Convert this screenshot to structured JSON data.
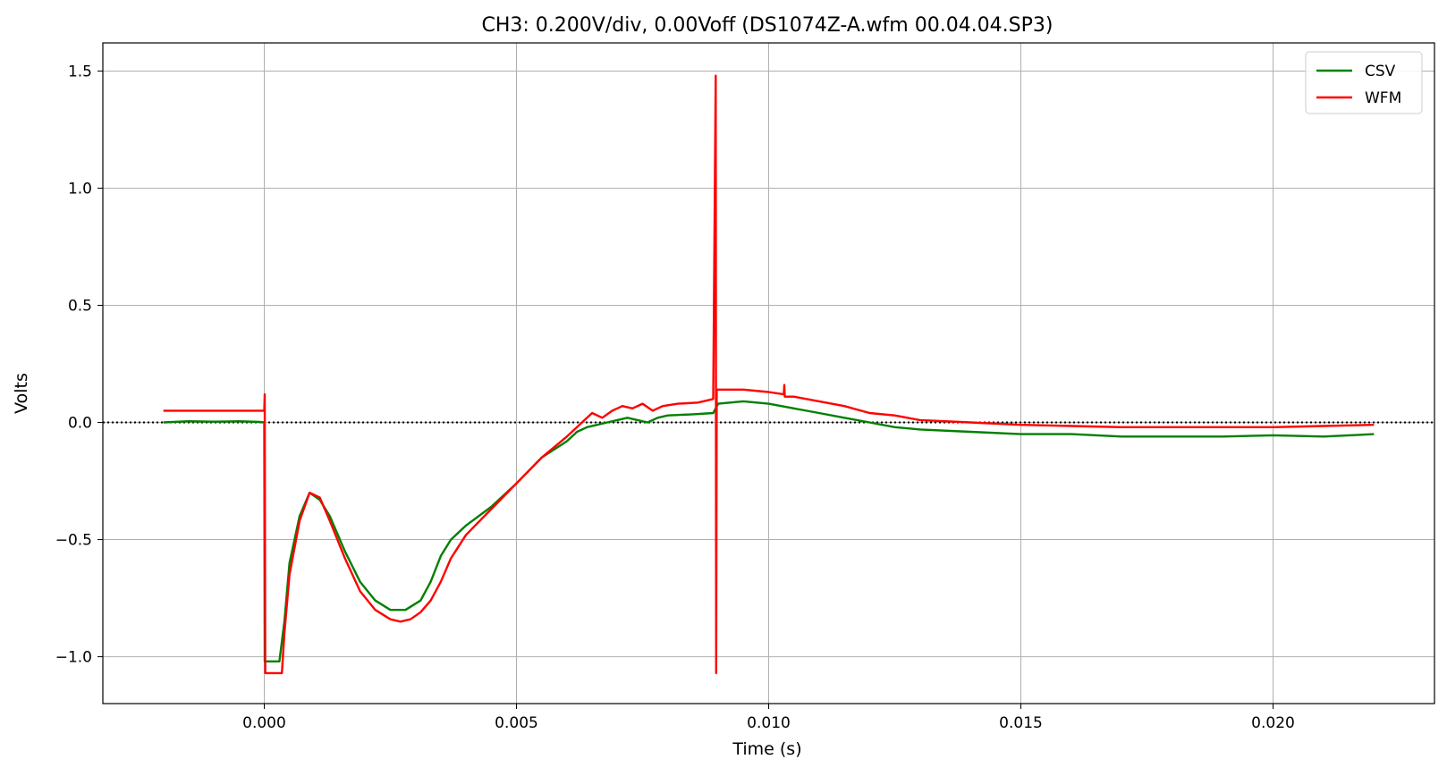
{
  "chart_data": {
    "type": "line",
    "title": "CH3: 0.200V/div, 0.00Voff (DS1074Z-A.wfm 00.04.04.SP3)",
    "xlabel": "Time (s)",
    "ylabel": "Volts",
    "xlim": [
      -0.0032,
      0.0232
    ],
    "ylim": [
      -1.2,
      1.62
    ],
    "xticks": [
      0.0,
      0.005,
      0.01,
      0.015,
      0.02
    ],
    "xtick_labels": [
      "0.000",
      "0.005",
      "0.010",
      "0.015",
      "0.020"
    ],
    "yticks": [
      -1.0,
      -0.5,
      0.0,
      0.5,
      1.0,
      1.5
    ],
    "ytick_labels": [
      "−1.0",
      "−0.5",
      "0.0",
      "0.5",
      "1.0",
      "1.5"
    ],
    "grid": true,
    "legend_position": "top-right",
    "reference_line": {
      "y": 0.0,
      "style": "dotted",
      "color": "#000000"
    },
    "series": [
      {
        "name": "CSV",
        "color": "#008000",
        "x": [
          -0.002,
          -0.0015,
          -0.001,
          -0.0005,
          -0.0001,
          0.0,
          1e-05,
          0.0003,
          0.0004,
          0.0005,
          0.0007,
          0.0009,
          0.0011,
          0.0013,
          0.0016,
          0.0019,
          0.0022,
          0.0025,
          0.0028,
          0.0031,
          0.0033,
          0.0035,
          0.0037,
          0.004,
          0.0045,
          0.005,
          0.0055,
          0.006,
          0.0062,
          0.0064,
          0.0066,
          0.0068,
          0.007,
          0.0072,
          0.0074,
          0.0076,
          0.0078,
          0.008,
          0.0085,
          0.0089,
          0.009,
          0.0095,
          0.01,
          0.0105,
          0.011,
          0.0115,
          0.012,
          0.0125,
          0.013,
          0.014,
          0.015,
          0.016,
          0.017,
          0.018,
          0.019,
          0.02,
          0.021,
          0.022
        ],
        "y": [
          0.0,
          0.005,
          0.003,
          0.005,
          0.002,
          0.0,
          -1.02,
          -1.02,
          -0.85,
          -0.6,
          -0.4,
          -0.3,
          -0.33,
          -0.4,
          -0.55,
          -0.68,
          -0.76,
          -0.8,
          -0.8,
          -0.76,
          -0.68,
          -0.57,
          -0.5,
          -0.44,
          -0.36,
          -0.26,
          -0.15,
          -0.08,
          -0.04,
          -0.02,
          -0.01,
          0.0,
          0.01,
          0.02,
          0.01,
          0.0,
          0.02,
          0.03,
          0.035,
          0.04,
          0.08,
          0.09,
          0.08,
          0.06,
          0.04,
          0.02,
          0.0,
          -0.02,
          -0.03,
          -0.04,
          -0.05,
          -0.05,
          -0.06,
          -0.06,
          -0.06,
          -0.055,
          -0.06,
          -0.05
        ]
      },
      {
        "name": "WFM",
        "color": "#ff0000",
        "x": [
          -0.002,
          -0.0015,
          -0.001,
          -0.0005,
          -0.0001,
          0.0,
          1e-05,
          2e-05,
          3e-05,
          0.00035,
          0.0004,
          0.0005,
          0.0007,
          0.0009,
          0.0011,
          0.0013,
          0.0016,
          0.0019,
          0.0022,
          0.0025,
          0.0027,
          0.0029,
          0.0031,
          0.0033,
          0.0035,
          0.0037,
          0.004,
          0.0045,
          0.005,
          0.0055,
          0.006,
          0.0063,
          0.0065,
          0.0067,
          0.0069,
          0.0071,
          0.0073,
          0.0075,
          0.0077,
          0.0079,
          0.0082,
          0.0086,
          0.0089,
          0.00895,
          0.00896,
          0.00897,
          0.009,
          0.0095,
          0.01,
          0.0103,
          0.01031,
          0.01032,
          0.0105,
          0.011,
          0.0115,
          0.012,
          0.0125,
          0.013,
          0.014,
          0.015,
          0.016,
          0.017,
          0.018,
          0.019,
          0.02,
          0.021,
          0.022
        ],
        "y": [
          0.05,
          0.05,
          0.05,
          0.05,
          0.05,
          0.05,
          0.12,
          -1.07,
          -1.07,
          -1.07,
          -0.9,
          -0.65,
          -0.42,
          -0.3,
          -0.32,
          -0.42,
          -0.58,
          -0.72,
          -0.8,
          -0.84,
          -0.85,
          -0.84,
          -0.81,
          -0.76,
          -0.68,
          -0.58,
          -0.48,
          -0.37,
          -0.26,
          -0.15,
          -0.06,
          0.0,
          0.04,
          0.02,
          0.05,
          0.07,
          0.06,
          0.08,
          0.05,
          0.07,
          0.08,
          0.085,
          0.1,
          1.48,
          -1.07,
          0.14,
          0.14,
          0.14,
          0.13,
          0.12,
          0.16,
          0.11,
          0.11,
          0.09,
          0.07,
          0.04,
          0.03,
          0.01,
          0.0,
          -0.01,
          -0.015,
          -0.02,
          -0.02,
          -0.02,
          -0.02,
          -0.015,
          -0.01
        ]
      }
    ]
  }
}
